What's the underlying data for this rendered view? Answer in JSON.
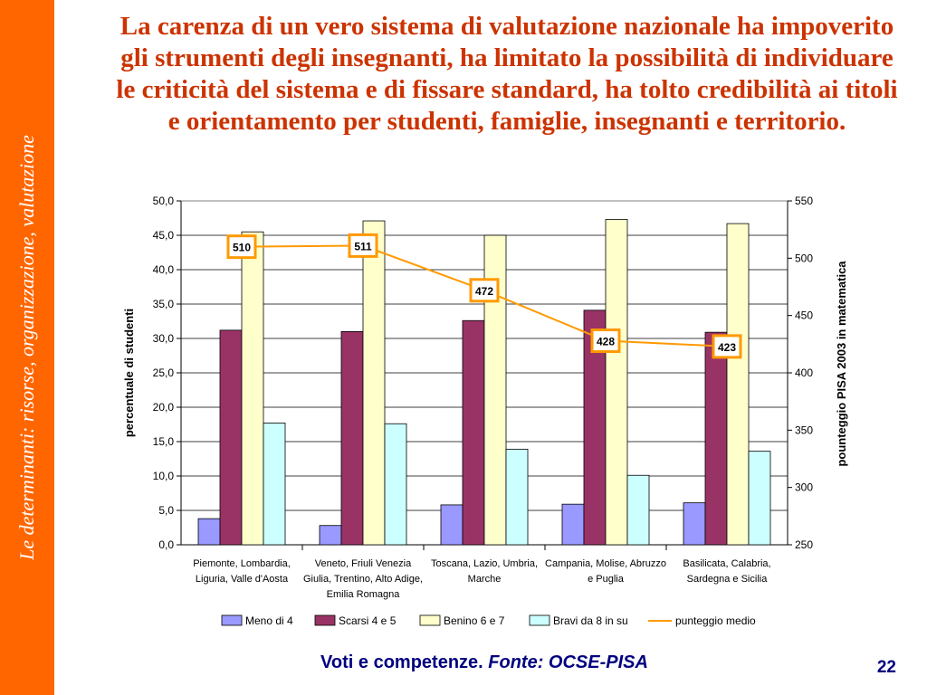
{
  "sidebar": {
    "text": "Le determinanti: risorse, organizzazione, valutazione",
    "color": "#ff6600"
  },
  "slide": {
    "title": "La carenza di un vero sistema di valutazione nazionale ha impoverito gli strumenti degli insegnanti, ha limitato la possibilità di individuare le criticità del sistema e di fissare standard, ha tolto credibilità ai titoli e orientamento per studenti, famiglie, insegnanti e territorio.",
    "title_color": "#cc3300"
  },
  "footer": {
    "caption": "Voti e competenze.",
    "source": "Fonte: OCSE-PISA",
    "page_number": "22"
  },
  "chart_data": {
    "type": "bar",
    "categories": [
      [
        "Piemonte, Lombardia,",
        "Liguria, Valle d'Aosta"
      ],
      [
        "Veneto, Friuli Venezia",
        "Giulia, Trentino, Alto Adige,",
        "Emilia Romagna"
      ],
      [
        "Toscana, Lazio, Umbria,",
        "Marche"
      ],
      [
        "Campania, Molise, Abruzzo",
        "e Puglia"
      ],
      [
        "Basilicata, Calabria,",
        "Sardegna e Sicilia"
      ]
    ],
    "series": [
      {
        "name": "Meno di 4",
        "color": "#9999ff",
        "values": [
          3.8,
          2.8,
          5.8,
          5.9,
          6.1
        ]
      },
      {
        "name": "Scarsi 4 e 5",
        "color": "#993366",
        "values": [
          31.2,
          31.0,
          32.6,
          34.1,
          30.9
        ]
      },
      {
        "name": "Benino 6 e 7",
        "color": "#ffffcc",
        "values": [
          45.5,
          47.1,
          45.0,
          47.3,
          46.7
        ]
      },
      {
        "name": "Bravi da 8 in su",
        "color": "#ccffff",
        "values": [
          17.7,
          17.6,
          13.9,
          10.1,
          13.6
        ]
      }
    ],
    "line": {
      "name": "punteggio medio",
      "color": "#ff9900",
      "values": [
        510,
        511,
        472,
        428,
        423
      ],
      "labels": [
        "510",
        "511",
        "472",
        "428",
        "423"
      ]
    },
    "ylabel": "percentuale di studenti",
    "ylim": [
      0,
      50
    ],
    "yticks": [
      "0,0",
      "5,0",
      "10,0",
      "15,0",
      "20,0",
      "25,0",
      "30,0",
      "35,0",
      "40,0",
      "45,0",
      "50,0"
    ],
    "y2label": "pounteggio PISA 2003 in matematica",
    "y2lim": [
      250,
      550
    ],
    "y2ticks": [
      "250",
      "300",
      "350",
      "400",
      "450",
      "500",
      "550"
    ],
    "grid": true,
    "legend": "bottom"
  }
}
